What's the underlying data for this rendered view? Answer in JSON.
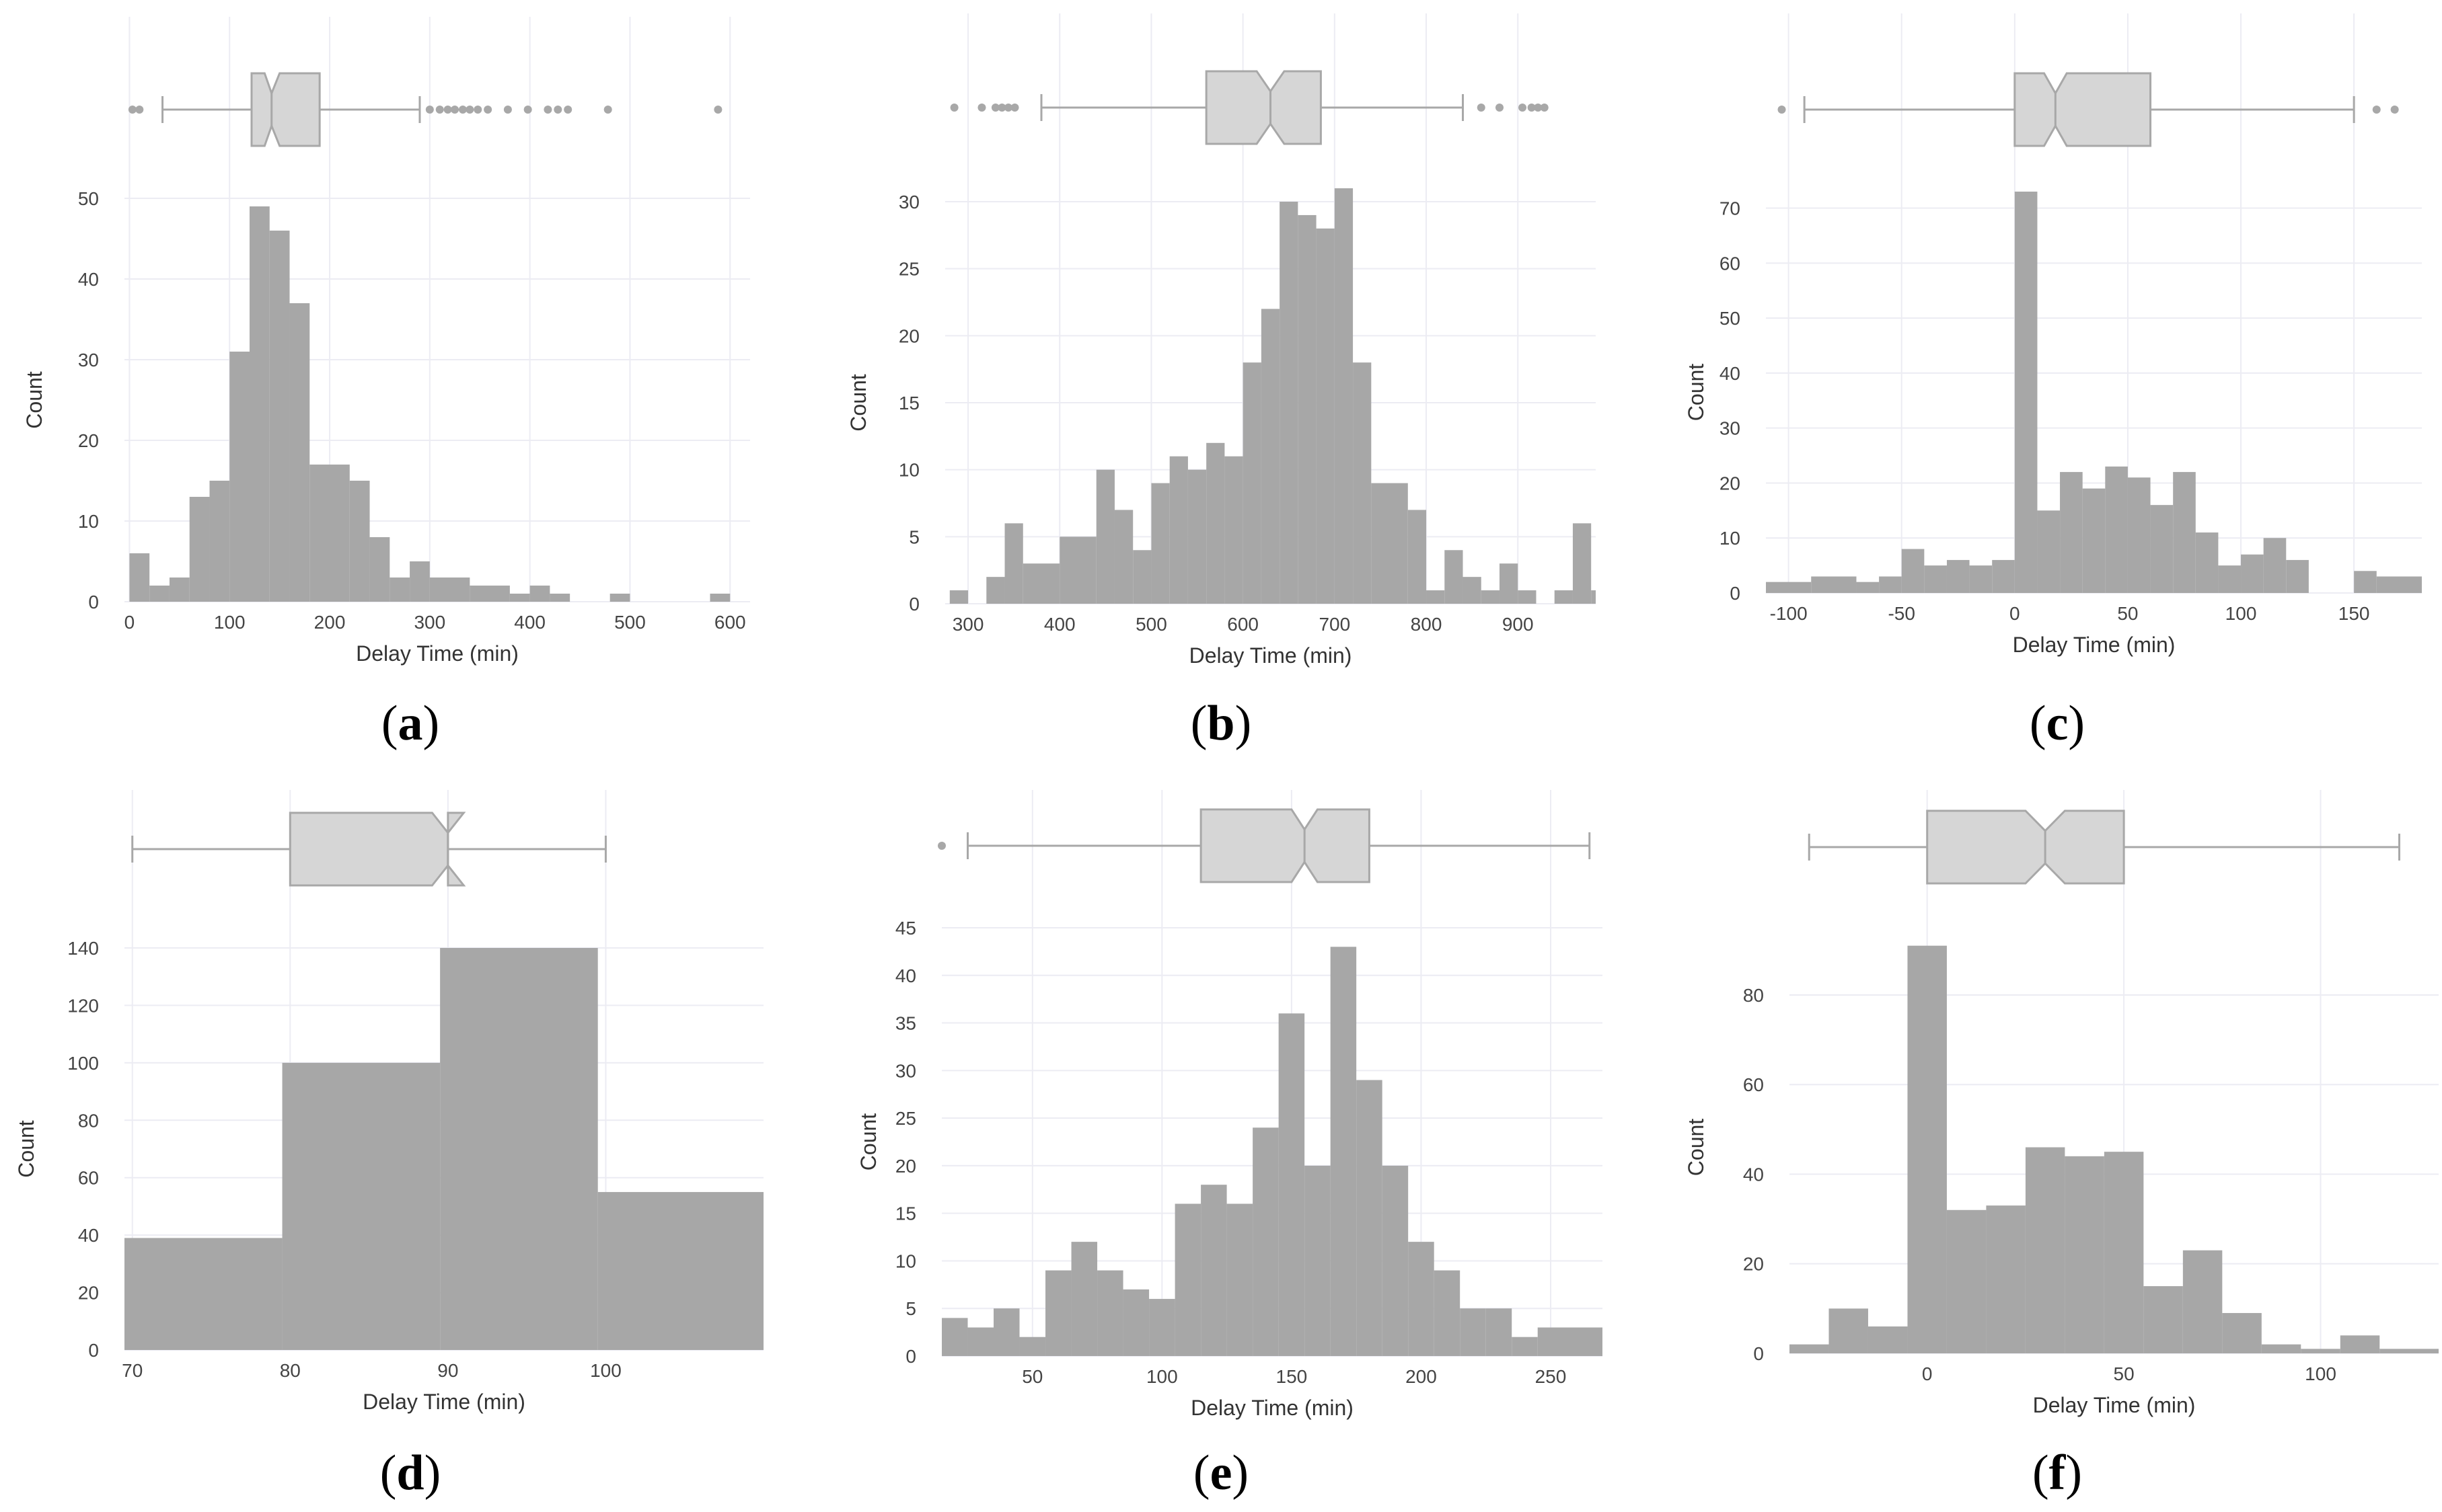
{
  "colors": {
    "bar": "#a7a7a7",
    "box_fill": "#d6d6d6",
    "box_stroke": "#a8a8a8",
    "grid": "#ececf3",
    "outlier": "#a8a8a8"
  },
  "chart_data": [
    {
      "panel": "a",
      "type": "histogram+boxplot",
      "caption_open": "(",
      "caption_letter": "a",
      "caption_close": ")",
      "xlabel": "Delay Time (min)",
      "ylabel": "Count",
      "xlim": [
        -5,
        620
      ],
      "ylim": [
        0,
        50
      ],
      "xticks": [
        0,
        100,
        200,
        300,
        400,
        500,
        600
      ],
      "yticks": [
        0,
        10,
        20,
        30,
        40,
        50
      ],
      "grid": true,
      "bin_width": 20,
      "bins": [
        {
          "x0": 0,
          "x1": 20,
          "count": 6
        },
        {
          "x0": 20,
          "x1": 40,
          "count": 2
        },
        {
          "x0": 40,
          "x1": 60,
          "count": 3
        },
        {
          "x0": 60,
          "x1": 80,
          "count": 13
        },
        {
          "x0": 80,
          "x1": 100,
          "count": 15
        },
        {
          "x0": 100,
          "x1": 120,
          "count": 31
        },
        {
          "x0": 120,
          "x1": 140,
          "count": 49
        },
        {
          "x0": 140,
          "x1": 160,
          "count": 46
        },
        {
          "x0": 160,
          "x1": 180,
          "count": 37
        },
        {
          "x0": 180,
          "x1": 220,
          "count": 17
        },
        {
          "x0": 220,
          "x1": 240,
          "count": 15
        },
        {
          "x0": 240,
          "x1": 260,
          "count": 8
        },
        {
          "x0": 260,
          "x1": 280,
          "count": 3
        },
        {
          "x0": 280,
          "x1": 300,
          "count": 5
        },
        {
          "x0": 300,
          "x1": 340,
          "count": 3
        },
        {
          "x0": 340,
          "x1": 380,
          "count": 2
        },
        {
          "x0": 380,
          "x1": 400,
          "count": 1
        },
        {
          "x0": 400,
          "x1": 420,
          "count": 2
        },
        {
          "x0": 420,
          "x1": 440,
          "count": 1
        },
        {
          "x0": 480,
          "x1": 500,
          "count": 1
        },
        {
          "x0": 580,
          "x1": 600,
          "count": 1
        }
      ],
      "box": {
        "whisker_low": 33,
        "q1": 122,
        "median": 142,
        "q3": 190,
        "whisker_high": 290,
        "notch_low": 135,
        "notch_high": 150
      },
      "outliers": [
        3,
        10,
        300,
        310,
        318,
        325,
        333,
        340,
        348,
        358,
        378,
        398,
        418,
        428,
        438,
        478,
        588
      ]
    },
    {
      "panel": "b",
      "type": "histogram+boxplot",
      "caption_open": "(",
      "caption_letter": "b",
      "caption_close": ")",
      "xlabel": "Delay Time (min)",
      "ylabel": "Count",
      "xlim": [
        275,
        985
      ],
      "ylim": [
        0,
        30
      ],
      "xticks": [
        300,
        400,
        500,
        600,
        700,
        800,
        900
      ],
      "yticks": [
        0,
        5,
        10,
        15,
        20,
        25,
        30
      ],
      "grid": true,
      "bin_width": 20,
      "bins": [
        {
          "x0": 280,
          "x1": 300,
          "count": 1
        },
        {
          "x0": 320,
          "x1": 340,
          "count": 2
        },
        {
          "x0": 340,
          "x1": 360,
          "count": 6
        },
        {
          "x0": 360,
          "x1": 400,
          "count": 3
        },
        {
          "x0": 400,
          "x1": 440,
          "count": 5
        },
        {
          "x0": 440,
          "x1": 460,
          "count": 10
        },
        {
          "x0": 460,
          "x1": 480,
          "count": 7
        },
        {
          "x0": 480,
          "x1": 500,
          "count": 4
        },
        {
          "x0": 500,
          "x1": 520,
          "count": 9
        },
        {
          "x0": 520,
          "x1": 540,
          "count": 11
        },
        {
          "x0": 540,
          "x1": 560,
          "count": 10
        },
        {
          "x0": 560,
          "x1": 580,
          "count": 12
        },
        {
          "x0": 580,
          "x1": 600,
          "count": 11
        },
        {
          "x0": 600,
          "x1": 620,
          "count": 18
        },
        {
          "x0": 620,
          "x1": 640,
          "count": 22
        },
        {
          "x0": 640,
          "x1": 660,
          "count": 30
        },
        {
          "x0": 660,
          "x1": 680,
          "count": 29
        },
        {
          "x0": 680,
          "x1": 700,
          "count": 28
        },
        {
          "x0": 700,
          "x1": 720,
          "count": 31
        },
        {
          "x0": 720,
          "x1": 740,
          "count": 18
        },
        {
          "x0": 740,
          "x1": 780,
          "count": 9
        },
        {
          "x0": 780,
          "x1": 800,
          "count": 7
        },
        {
          "x0": 800,
          "x1": 820,
          "count": 1
        },
        {
          "x0": 820,
          "x1": 840,
          "count": 4
        },
        {
          "x0": 840,
          "x1": 860,
          "count": 2
        },
        {
          "x0": 860,
          "x1": 880,
          "count": 1
        },
        {
          "x0": 880,
          "x1": 900,
          "count": 3
        },
        {
          "x0": 900,
          "x1": 920,
          "count": 1
        },
        {
          "x0": 940,
          "x1": 960,
          "count": 1
        },
        {
          "x0": 960,
          "x1": 980,
          "count": 6
        },
        {
          "x0": 980,
          "x1": 985,
          "count": 1
        }
      ],
      "box": {
        "whisker_low": 380,
        "q1": 560,
        "median": 630,
        "q3": 685,
        "whisker_high": 840,
        "notch_low": 615,
        "notch_high": 645
      },
      "outliers": [
        285,
        315,
        330,
        337,
        344,
        351,
        860,
        880,
        905,
        915,
        922,
        929
      ]
    },
    {
      "panel": "c",
      "type": "histogram+boxplot",
      "caption_open": "(",
      "caption_letter": "c",
      "caption_close": ")",
      "xlabel": "Delay Time (min)",
      "ylabel": "Count",
      "xlim": [
        -110,
        180
      ],
      "ylim": [
        0,
        73
      ],
      "xticks": [
        -100,
        -50,
        0,
        50,
        100,
        150
      ],
      "yticks": [
        0,
        10,
        20,
        30,
        40,
        50,
        60,
        70
      ],
      "grid": true,
      "bin_width": 10,
      "bins": [
        {
          "x0": -110,
          "x1": -90,
          "count": 2
        },
        {
          "x0": -90,
          "x1": -70,
          "count": 3
        },
        {
          "x0": -70,
          "x1": -60,
          "count": 2
        },
        {
          "x0": -60,
          "x1": -50,
          "count": 3
        },
        {
          "x0": -50,
          "x1": -40,
          "count": 8
        },
        {
          "x0": -40,
          "x1": -30,
          "count": 5
        },
        {
          "x0": -30,
          "x1": -20,
          "count": 6
        },
        {
          "x0": -20,
          "x1": -10,
          "count": 5
        },
        {
          "x0": -10,
          "x1": 0,
          "count": 6
        },
        {
          "x0": 0,
          "x1": 10,
          "count": 73
        },
        {
          "x0": 10,
          "x1": 20,
          "count": 15
        },
        {
          "x0": 20,
          "x1": 30,
          "count": 22
        },
        {
          "x0": 30,
          "x1": 40,
          "count": 19
        },
        {
          "x0": 40,
          "x1": 50,
          "count": 23
        },
        {
          "x0": 50,
          "x1": 60,
          "count": 21
        },
        {
          "x0": 60,
          "x1": 70,
          "count": 16
        },
        {
          "x0": 70,
          "x1": 80,
          "count": 22
        },
        {
          "x0": 80,
          "x1": 90,
          "count": 11
        },
        {
          "x0": 90,
          "x1": 100,
          "count": 5
        },
        {
          "x0": 100,
          "x1": 110,
          "count": 7
        },
        {
          "x0": 110,
          "x1": 120,
          "count": 10
        },
        {
          "x0": 120,
          "x1": 130,
          "count": 6
        },
        {
          "x0": 150,
          "x1": 160,
          "count": 4
        },
        {
          "x0": 160,
          "x1": 180,
          "count": 3
        }
      ],
      "box": {
        "whisker_low": -93,
        "q1": 0,
        "median": 18,
        "q3": 60,
        "whisker_high": 150,
        "notch_low": 13,
        "notch_high": 23
      },
      "outliers": [
        -103,
        160,
        168
      ]
    },
    {
      "panel": "d",
      "type": "histogram+boxplot",
      "caption_open": "(",
      "caption_letter": "d",
      "caption_close": ")",
      "xlabel": "Delay Time (min)",
      "ylabel": "Count",
      "xlim": [
        69.5,
        110
      ],
      "ylim": [
        0,
        140
      ],
      "xticks": [
        70,
        80,
        90,
        100
      ],
      "yticks": [
        0,
        20,
        40,
        60,
        80,
        100,
        120,
        140
      ],
      "grid": true,
      "bin_width": 10,
      "bins": [
        {
          "x0": 69.5,
          "x1": 79.5,
          "count": 39
        },
        {
          "x0": 79.5,
          "x1": 89.5,
          "count": 100
        },
        {
          "x0": 89.5,
          "x1": 99.5,
          "count": 140
        },
        {
          "x0": 99.5,
          "x1": 110,
          "count": 55
        }
      ],
      "box": {
        "whisker_low": 70,
        "q1": 80,
        "median": 90,
        "q3": 90,
        "whisker_high": 100,
        "notch_low": 89,
        "notch_high": 91
      },
      "outliers": []
    },
    {
      "panel": "e",
      "type": "histogram+boxplot",
      "caption_open": "(",
      "caption_letter": "e",
      "caption_close": ")",
      "xlabel": "Delay Time (min)",
      "ylabel": "Count",
      "xlim": [
        15,
        270
      ],
      "ylim": [
        0,
        45
      ],
      "xticks": [
        50,
        100,
        150,
        200,
        250
      ],
      "yticks": [
        0,
        5,
        10,
        15,
        20,
        25,
        30,
        35,
        40,
        45
      ],
      "grid": true,
      "bin_width": 10,
      "bins": [
        {
          "x0": 15,
          "x1": 25,
          "count": 4
        },
        {
          "x0": 25,
          "x1": 35,
          "count": 3
        },
        {
          "x0": 35,
          "x1": 45,
          "count": 5
        },
        {
          "x0": 45,
          "x1": 55,
          "count": 2
        },
        {
          "x0": 55,
          "x1": 65,
          "count": 9
        },
        {
          "x0": 65,
          "x1": 75,
          "count": 12
        },
        {
          "x0": 75,
          "x1": 85,
          "count": 9
        },
        {
          "x0": 85,
          "x1": 95,
          "count": 7
        },
        {
          "x0": 95,
          "x1": 105,
          "count": 6
        },
        {
          "x0": 105,
          "x1": 115,
          "count": 16
        },
        {
          "x0": 115,
          "x1": 125,
          "count": 18
        },
        {
          "x0": 125,
          "x1": 135,
          "count": 16
        },
        {
          "x0": 135,
          "x1": 145,
          "count": 24
        },
        {
          "x0": 145,
          "x1": 155,
          "count": 36
        },
        {
          "x0": 155,
          "x1": 165,
          "count": 20
        },
        {
          "x0": 165,
          "x1": 175,
          "count": 43
        },
        {
          "x0": 175,
          "x1": 185,
          "count": 29
        },
        {
          "x0": 185,
          "x1": 195,
          "count": 20
        },
        {
          "x0": 195,
          "x1": 205,
          "count": 12
        },
        {
          "x0": 205,
          "x1": 215,
          "count": 9
        },
        {
          "x0": 215,
          "x1": 225,
          "count": 5
        },
        {
          "x0": 225,
          "x1": 235,
          "count": 5
        },
        {
          "x0": 235,
          "x1": 245,
          "count": 2
        },
        {
          "x0": 245,
          "x1": 270,
          "count": 3
        }
      ],
      "box": {
        "whisker_low": 25,
        "q1": 115,
        "median": 155,
        "q3": 180,
        "whisker_high": 265,
        "notch_low": 150,
        "notch_high": 160
      },
      "outliers": [
        15
      ]
    },
    {
      "panel": "f",
      "type": "histogram+boxplot",
      "caption_open": "(",
      "caption_letter": "f",
      "caption_close": ")",
      "xlabel": "Delay Time (min)",
      "ylabel": "Count",
      "xlim": [
        -35,
        130
      ],
      "ylim": [
        0,
        92
      ],
      "xticks": [
        0,
        50,
        100
      ],
      "yticks": [
        0,
        20,
        40,
        60,
        80
      ],
      "grid": true,
      "bin_width": 10,
      "bins": [
        {
          "x0": -35,
          "x1": -25,
          "count": 2
        },
        {
          "x0": -25,
          "x1": -15,
          "count": 10
        },
        {
          "x0": -15,
          "x1": -5,
          "count": 6
        },
        {
          "x0": -5,
          "x1": 5,
          "count": 91
        },
        {
          "x0": 5,
          "x1": 15,
          "count": 32
        },
        {
          "x0": 15,
          "x1": 25,
          "count": 33
        },
        {
          "x0": 25,
          "x1": 35,
          "count": 46
        },
        {
          "x0": 35,
          "x1": 45,
          "count": 44
        },
        {
          "x0": 45,
          "x1": 55,
          "count": 45
        },
        {
          "x0": 55,
          "x1": 65,
          "count": 15
        },
        {
          "x0": 65,
          "x1": 75,
          "count": 23
        },
        {
          "x0": 75,
          "x1": 85,
          "count": 9
        },
        {
          "x0": 85,
          "x1": 95,
          "count": 2
        },
        {
          "x0": 95,
          "x1": 105,
          "count": 1
        },
        {
          "x0": 105,
          "x1": 115,
          "count": 4
        },
        {
          "x0": 115,
          "x1": 130,
          "count": 1
        }
      ],
      "box": {
        "whisker_low": -30,
        "q1": 0,
        "median": 30,
        "q3": 50,
        "whisker_high": 120,
        "notch_low": 25,
        "notch_high": 35
      },
      "outliers": []
    }
  ]
}
